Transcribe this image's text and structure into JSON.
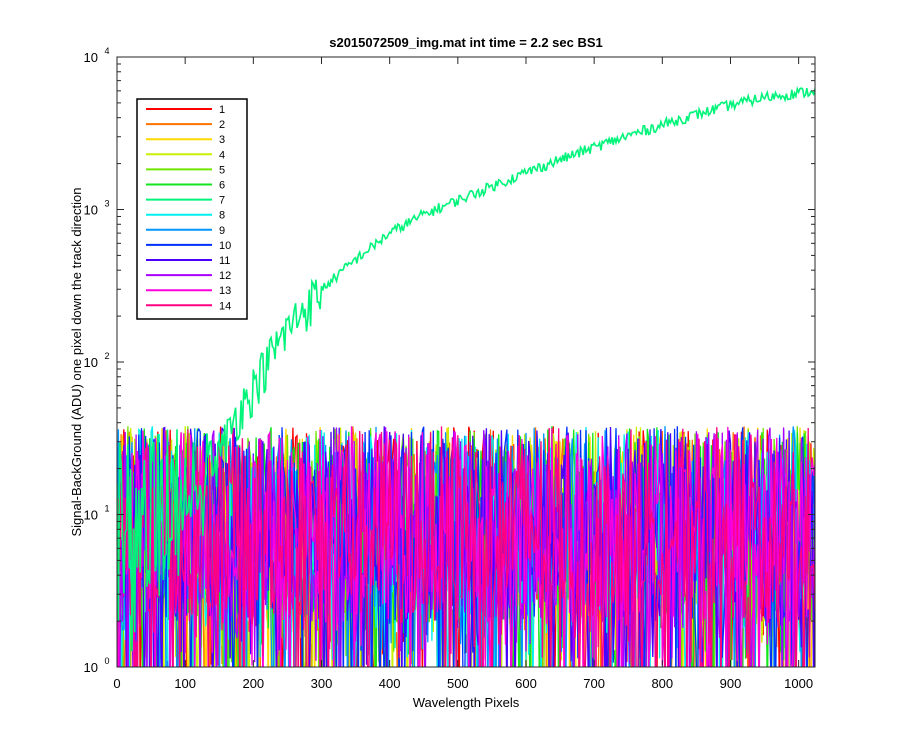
{
  "chart_data": {
    "type": "line",
    "title": "s2015072509_img.mat int time = 2.2 sec   BS1",
    "xlabel": "Wavelength Pixels",
    "ylabel": "Signal-BackGround (ADU) one pixel down the track direction",
    "xlim": [
      0,
      1024
    ],
    "ylim": [
      1,
      10000
    ],
    "yscale": "log",
    "x_ticks": [
      "0",
      "100",
      "200",
      "300",
      "400",
      "500",
      "600",
      "700",
      "800",
      "900",
      "1000"
    ],
    "y_ticks": [
      {
        "base": "10",
        "exp": "0"
      },
      {
        "base": "10",
        "exp": "1"
      },
      {
        "base": "10",
        "exp": "2"
      },
      {
        "base": "10",
        "exp": "3"
      },
      {
        "base": "10",
        "exp": "4"
      }
    ],
    "legend_position": "top-left",
    "series": [
      {
        "name": "1",
        "color": "#ff0000"
      },
      {
        "name": "2",
        "color": "#ff7200"
      },
      {
        "name": "3",
        "color": "#ffd800"
      },
      {
        "name": "4",
        "color": "#c8f000"
      },
      {
        "name": "5",
        "color": "#6ee600"
      },
      {
        "name": "6",
        "color": "#13e61c"
      },
      {
        "name": "7",
        "color": "#00f47a",
        "profile": [
          [
            0,
            1
          ],
          [
            100,
            8
          ],
          [
            130,
            15
          ],
          [
            150,
            25
          ],
          [
            175,
            45
          ],
          [
            200,
            70
          ],
          [
            225,
            110
          ],
          [
            250,
            165
          ],
          [
            275,
            230
          ],
          [
            300,
            300
          ],
          [
            350,
            470
          ],
          [
            400,
            700
          ],
          [
            450,
            930
          ],
          [
            500,
            1150
          ],
          [
            550,
            1420
          ],
          [
            600,
            1750
          ],
          [
            650,
            2130
          ],
          [
            700,
            2560
          ],
          [
            750,
            3050
          ],
          [
            800,
            3600
          ],
          [
            850,
            4200
          ],
          [
            900,
            4850
          ],
          [
            950,
            5450
          ],
          [
            1024,
            6000
          ]
        ]
      },
      {
        "name": "8",
        "color": "#00f0f0"
      },
      {
        "name": "9",
        "color": "#0096ff"
      },
      {
        "name": "10",
        "color": "#0032ff"
      },
      {
        "name": "11",
        "color": "#4b00ff"
      },
      {
        "name": "12",
        "color": "#aa00ff"
      },
      {
        "name": "13",
        "color": "#ff00dc"
      },
      {
        "name": "14",
        "color": "#ff0082"
      }
    ]
  }
}
